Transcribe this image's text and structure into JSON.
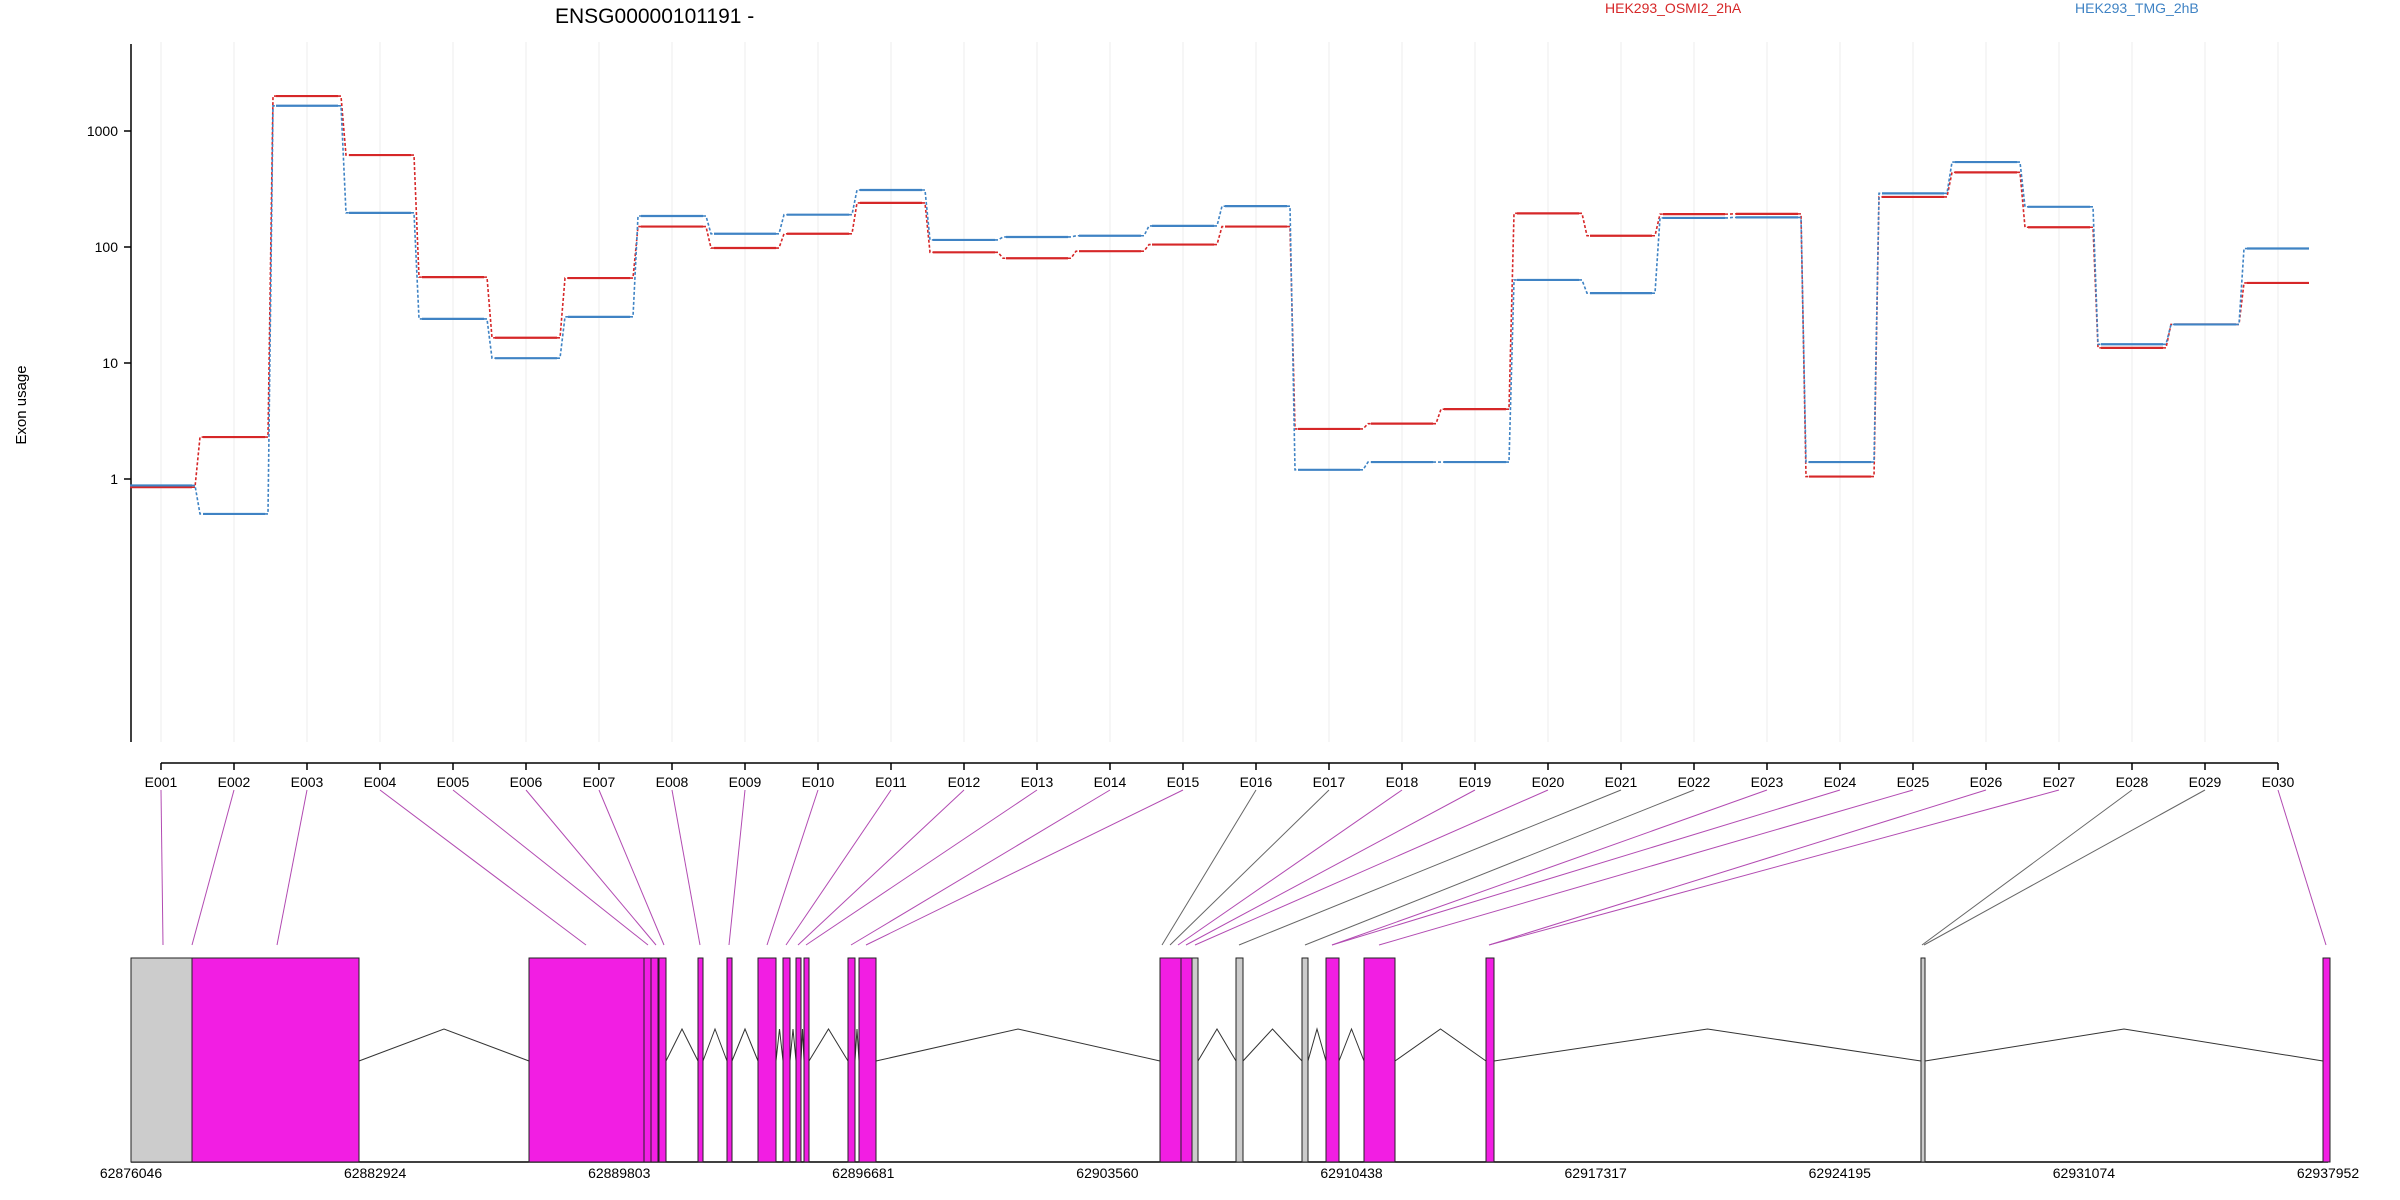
{
  "chart_data": {
    "type": "line",
    "title": "ENSG00000101191 -",
    "ylabel": "Exon usage",
    "yscale": "log",
    "ylim": [
      0.5,
      2500
    ],
    "yticks": [
      1,
      10,
      100,
      1000
    ],
    "ytick_labels": [
      "1",
      "10",
      "100",
      "1000"
    ],
    "categories": [
      "E001",
      "E002",
      "E003",
      "E004",
      "E005",
      "E006",
      "E007",
      "E008",
      "E009",
      "E010",
      "E011",
      "E012",
      "E013",
      "E014",
      "E015",
      "E016",
      "E017",
      "E018",
      "E019",
      "E020",
      "E021",
      "E022",
      "E023",
      "E024",
      "E025",
      "E026",
      "E027",
      "E028",
      "E029",
      "E030"
    ],
    "series": [
      {
        "name": "HEK293_OSMI2_2hA",
        "color": "#d62728",
        "values": [
          0.85,
          2.3,
          2000,
          620,
          55,
          16.5,
          54,
          150,
          98,
          130,
          240,
          90,
          80,
          92,
          105,
          150,
          2.7,
          3.0,
          4.0,
          195,
          125,
          192,
          193,
          1.05,
          270,
          440,
          148,
          13.5,
          21.5,
          49
        ]
      },
      {
        "name": "HEK293_TMG_2hB",
        "color": "#3f83c4",
        "values": [
          0.88,
          0.5,
          1650,
          197,
          24,
          11,
          25,
          185,
          130,
          190,
          310,
          115,
          122,
          125,
          152,
          225,
          1.2,
          1.4,
          1.4,
          52,
          40,
          178,
          180,
          1.4,
          290,
          540,
          222,
          14.5,
          21.5,
          97
        ]
      }
    ],
    "gene_axis_labels": [
      "62876046",
      "62882924",
      "62889803",
      "62896681",
      "62903560",
      "62910438",
      "62917317",
      "62924195",
      "62931074",
      "62937952"
    ],
    "gene_axis_range": [
      62876046,
      62937952
    ],
    "grid": "vertical, light",
    "legend": "top"
  }
}
